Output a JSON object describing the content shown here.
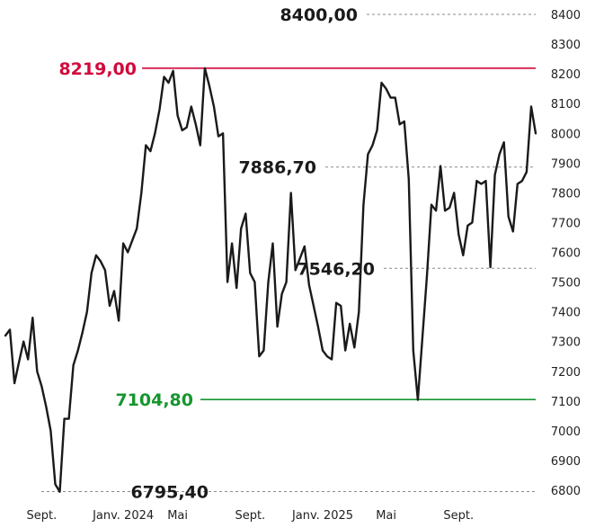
{
  "chart_data": {
    "type": "line",
    "title": "",
    "xlabel": "",
    "ylabel": "",
    "ylim": [
      6780,
      8420
    ],
    "xlim": [
      0,
      117
    ],
    "y_ticks": [
      6800,
      6900,
      7000,
      7100,
      7200,
      7300,
      7400,
      7500,
      7600,
      7700,
      7800,
      7900,
      8000,
      8100,
      8200,
      8300,
      8400
    ],
    "y_tick_labels": [
      "6800",
      "6900",
      "7000",
      "7100",
      "7200",
      "7300",
      "7400",
      "7500",
      "7600",
      "7700",
      "7800",
      "7900",
      "8000",
      "8100",
      "8200",
      "8300",
      "8400"
    ],
    "x_ticks": [
      {
        "x": 8,
        "label": "Sept."
      },
      {
        "x": 26,
        "label": "Janv. 2024"
      },
      {
        "x": 38,
        "label": "Mai"
      },
      {
        "x": 54,
        "label": "Sept."
      },
      {
        "x": 70,
        "label": "Janv. 2025"
      },
      {
        "x": 84,
        "label": "Mai"
      },
      {
        "x": 100,
        "label": "Sept."
      }
    ],
    "grid": false,
    "legend": "none",
    "series": [
      {
        "color": "#1a1a1a",
        "x": [
          0,
          1,
          2,
          3,
          4,
          5,
          6,
          7,
          8,
          9,
          10,
          11,
          12,
          13,
          14,
          15,
          16,
          17,
          18,
          19,
          20,
          21,
          22,
          23,
          24,
          25,
          26,
          27,
          28,
          29,
          30,
          31,
          32,
          33,
          34,
          35,
          36,
          37,
          38,
          39,
          40,
          41,
          42,
          43,
          44,
          45,
          46,
          47,
          48,
          49,
          50,
          51,
          52,
          53,
          54,
          55,
          56,
          57,
          58,
          59,
          60,
          61,
          62,
          63,
          64,
          65,
          66,
          67,
          68,
          69,
          70,
          71,
          72,
          73,
          74,
          75,
          76,
          77,
          78,
          79,
          80,
          81,
          82,
          83,
          84,
          85,
          86,
          87,
          88,
          89,
          90,
          91,
          92,
          93,
          94,
          95,
          96,
          97,
          98,
          99,
          100,
          101,
          102,
          103,
          104,
          105,
          106,
          107,
          108,
          109,
          110,
          111,
          112,
          113,
          114,
          115,
          116,
          117
        ],
        "values": [
          7320,
          7340,
          7160,
          7230,
          7300,
          7240,
          7380,
          7200,
          7150,
          7080,
          7000,
          6820,
          6795,
          7040,
          7040,
          7220,
          7270,
          7330,
          7400,
          7530,
          7590,
          7570,
          7540,
          7420,
          7470,
          7370,
          7630,
          7600,
          7640,
          7680,
          7800,
          7960,
          7940,
          8000,
          8080,
          8190,
          8170,
          8210,
          8060,
          8010,
          8020,
          8090,
          8030,
          7960,
          8219,
          8160,
          8090,
          7990,
          8000,
          7500,
          7630,
          7480,
          7680,
          7730,
          7530,
          7500,
          7250,
          7270,
          7500,
          7630,
          7350,
          7460,
          7500,
          7800,
          7540,
          7580,
          7620,
          7490,
          7420,
          7350,
          7270,
          7250,
          7240,
          7430,
          7420,
          7270,
          7360,
          7280,
          7400,
          7760,
          7930,
          7960,
          8010,
          8170,
          8150,
          8120,
          8120,
          8030,
          8040,
          7846,
          7270,
          7104,
          7310,
          7520,
          7760,
          7740,
          7890,
          7740,
          7750,
          7800,
          7660,
          7590,
          7690,
          7700,
          7840,
          7830,
          7840,
          7550,
          7860,
          7930,
          7970,
          7720,
          7670,
          7830,
          7840,
          7870,
          8090,
          8000
        ]
      }
    ],
    "reference_lines": [
      {
        "value": 8400,
        "label": "8400,00",
        "color": "#8a8a8a",
        "style": "dashed",
        "label_color": "#1a1a1a"
      },
      {
        "value": 8219,
        "label": "8219,00",
        "color": "#d10a3c",
        "style": "solid",
        "label_color": "#d10a3c"
      },
      {
        "value": 7886.7,
        "label": "7886,70",
        "color": "#8a8a8a",
        "style": "dashed",
        "label_color": "#1a1a1a"
      },
      {
        "value": 7546.2,
        "label": "7546,20",
        "color": "#8a8a8a",
        "style": "dashed",
        "label_color": "#1a1a1a"
      },
      {
        "value": 7104.8,
        "label": "7104,80",
        "color": "#17962f",
        "style": "solid",
        "label_color": "#17962f"
      },
      {
        "value": 6795.4,
        "label": "6795,40",
        "color": "#8a8a8a",
        "style": "dashed",
        "label_color": "#1a1a1a"
      }
    ]
  }
}
